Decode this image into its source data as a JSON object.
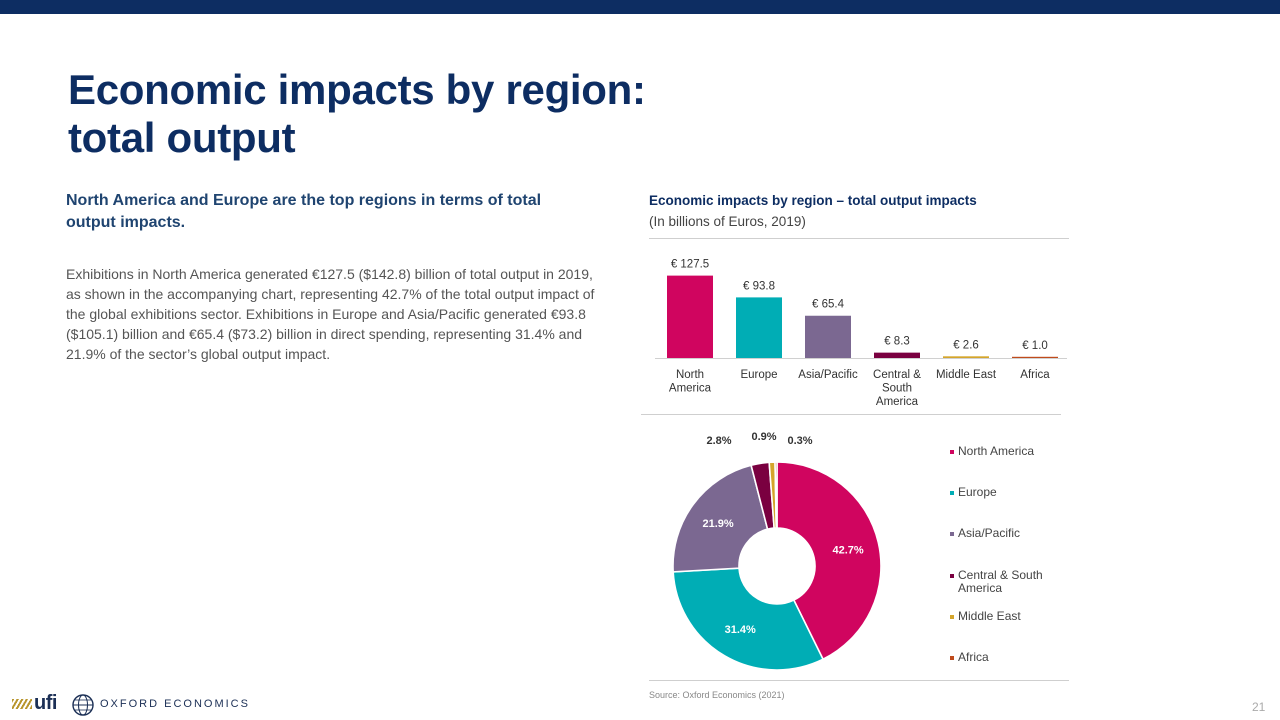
{
  "slide": {
    "title_line1": "Economic impacts by region:",
    "title_line2": "total output",
    "lead": "North America and Europe are the top regions in terms of total output impacts.",
    "body": "Exhibitions in North America generated €127.5 ($142.8) billion of total output in 2019, as shown in the accompanying chart, representing 42.7% of the total output impact of the global exhibitions sector. Exhibitions in Europe and Asia/Pacific generated €93.8 ($105.1) billion and €65.4 ($73.2) billion in direct spending, representing 31.4% and 21.9% of the sector’s global output impact.",
    "source": "Source: Oxford Economics (2021)",
    "page_number": "21",
    "logo_ufi": "ufi",
    "logo_oe": "OXFORD ECONOMICS"
  },
  "chart_data": [
    {
      "type": "bar",
      "title": "Economic impacts by region – total output impacts",
      "subtitle": "(In billions of Euros, 2019)",
      "categories": [
        "North America",
        "Europe",
        "Asia/Pacific",
        "Central & South America",
        "Middle East",
        "Africa"
      ],
      "category_lines": [
        [
          "North",
          "America"
        ],
        [
          "Europe"
        ],
        [
          "Asia/Pacific"
        ],
        [
          "Central &",
          "South",
          "America"
        ],
        [
          "Middle East"
        ],
        [
          "Africa"
        ]
      ],
      "values": [
        127.5,
        93.8,
        65.4,
        8.3,
        2.6,
        1.0
      ],
      "data_labels": [
        "€ 127.5",
        "€ 93.8",
        "€ 65.4",
        "€ 8.3",
        "€ 2.6",
        "€ 1.0"
      ],
      "colors": [
        "#d0055f",
        "#00adb5",
        "#7b6891",
        "#7a0040",
        "#d4a52b",
        "#bf4b1c"
      ],
      "ylim": [
        0,
        130
      ],
      "xlabel": "",
      "ylabel": ""
    },
    {
      "type": "pie",
      "donut": true,
      "labels": [
        "North America",
        "Europe",
        "Asia/Pacific",
        "Central & South America",
        "Middle East",
        "Africa"
      ],
      "values": [
        42.7,
        31.4,
        21.9,
        2.8,
        0.9,
        0.3
      ],
      "data_labels": [
        "42.7%",
        "31.4%",
        "21.9%",
        "2.8%",
        "0.9%",
        "0.3%"
      ],
      "colors": [
        "#d0055f",
        "#00adb5",
        "#7b6891",
        "#7a0040",
        "#d4a52b",
        "#bf4b1c"
      ],
      "legend_position": "right"
    }
  ]
}
